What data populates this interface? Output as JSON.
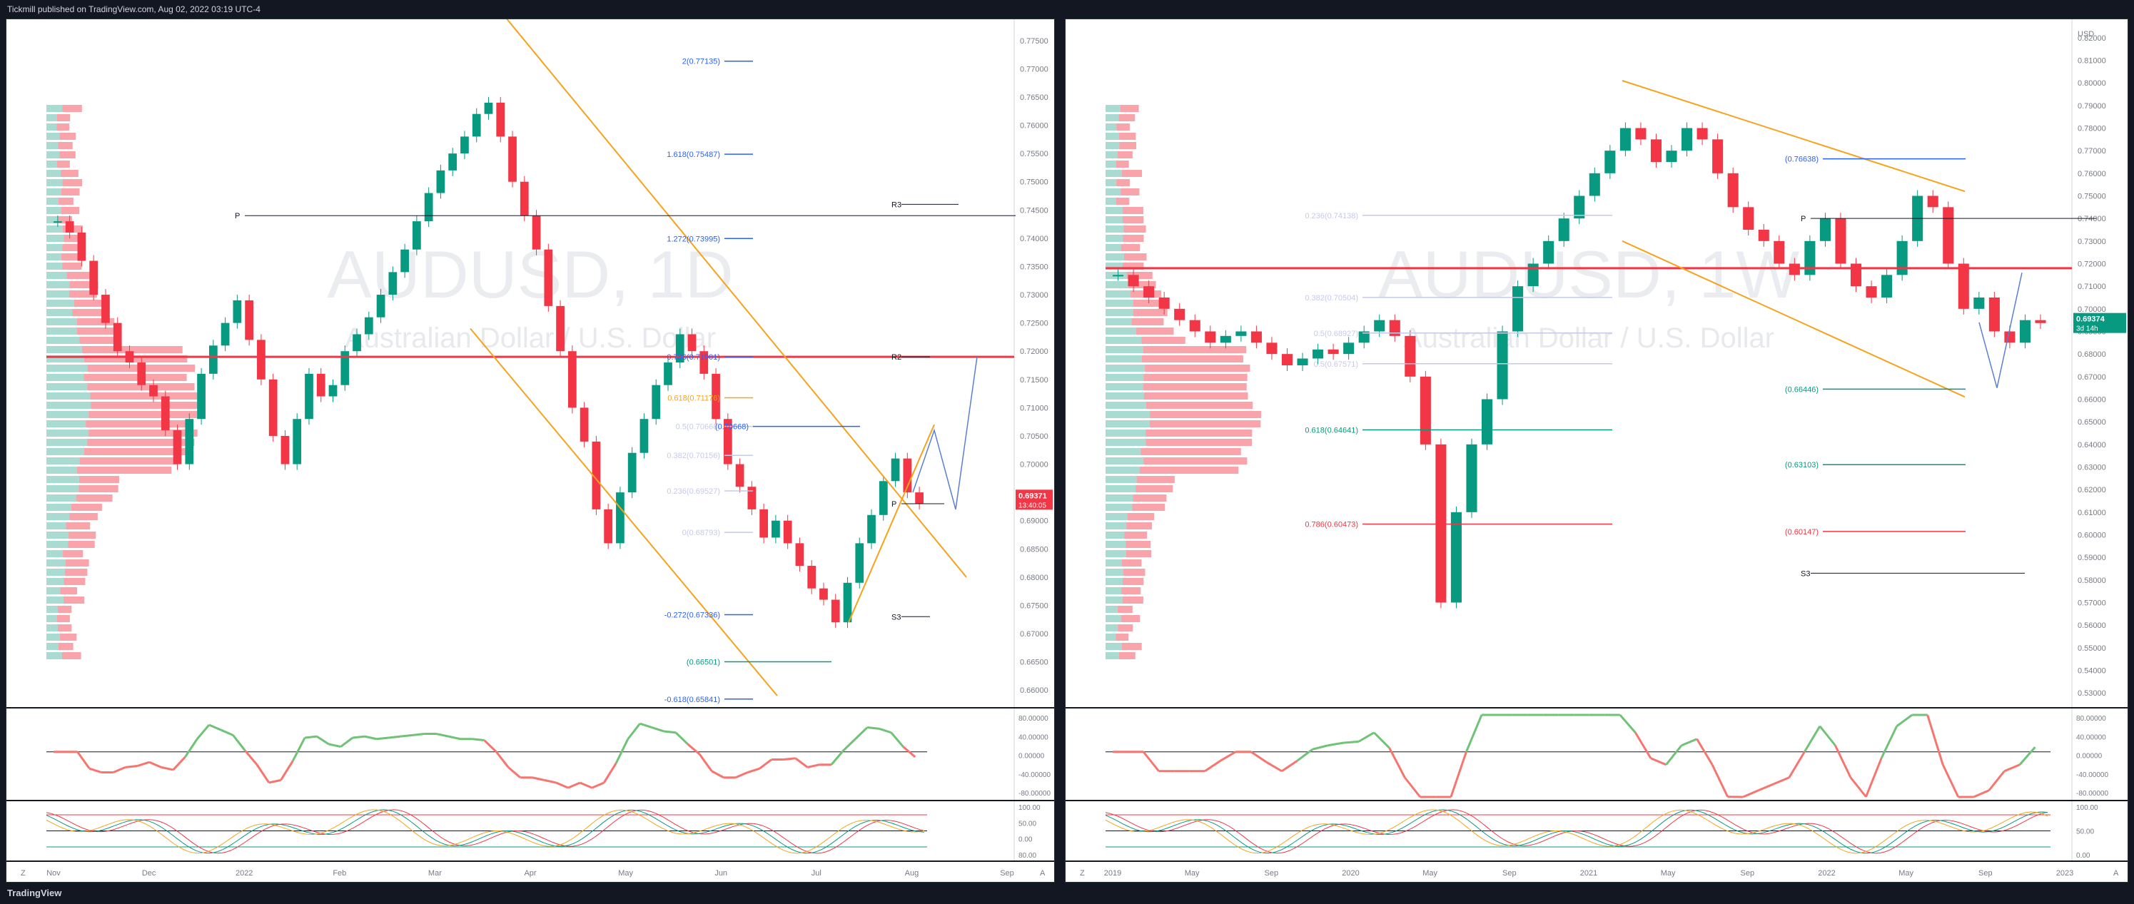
{
  "header": {
    "publish_line": "Tickmill published on TradingView.com, Aug 02, 2022 03:19 UTC-4"
  },
  "footer": {
    "brand": "TradingView"
  },
  "chart_data": [
    {
      "type": "line",
      "symbol_watermark": "AUDUSD, 1D",
      "subtitle_watermark": "Australian Dollar / U.S. Dollar",
      "currency": "",
      "current_price": "0.69371",
      "countdown": "13:40:05",
      "x_ticks": [
        "Nov",
        "Dec",
        "2022",
        "Feb",
        "Mar",
        "Apr",
        "May",
        "Jun",
        "Jul",
        "Aug",
        "Sep"
      ],
      "y_ticks": [
        0.775,
        0.77,
        0.765,
        0.76,
        0.755,
        0.75,
        0.745,
        0.74,
        0.735,
        0.73,
        0.725,
        0.72,
        0.715,
        0.71,
        0.705,
        0.7,
        0.695,
        0.69,
        0.685,
        0.68,
        0.675,
        0.67,
        0.665,
        0.66
      ],
      "ylim": [
        0.6575,
        0.7775
      ],
      "price": [
        0.743,
        0.741,
        0.736,
        0.73,
        0.725,
        0.72,
        0.718,
        0.714,
        0.712,
        0.706,
        0.7,
        0.708,
        0.716,
        0.721,
        0.725,
        0.729,
        0.722,
        0.715,
        0.705,
        0.7,
        0.708,
        0.716,
        0.712,
        0.714,
        0.72,
        0.723,
        0.726,
        0.73,
        0.734,
        0.738,
        0.743,
        0.748,
        0.752,
        0.755,
        0.758,
        0.762,
        0.764,
        0.758,
        0.75,
        0.744,
        0.738,
        0.728,
        0.72,
        0.71,
        0.704,
        0.692,
        0.686,
        0.695,
        0.702,
        0.708,
        0.714,
        0.718,
        0.723,
        0.72,
        0.716,
        0.708,
        0.7,
        0.696,
        0.692,
        0.687,
        0.69,
        0.686,
        0.682,
        0.678,
        0.676,
        0.672,
        0.679,
        0.686,
        0.691,
        0.697,
        0.701,
        0.695,
        0.693
      ],
      "fib_labels": [
        "2(0.77135)",
        "1.618(0.75487)",
        "1.272(0.73995)",
        "0.786(0.71901)",
        "0.618(0.71176)",
        "0.5(0.70668)",
        "0.382(0.70156)",
        "0.236(0.69527)",
        "0(0.68793)",
        "-0.272(0.67336)",
        "(0.66501)",
        "-0.618(0.65841)",
        "(0.70668)"
      ],
      "pivot_labels": [
        "P",
        "R3",
        "R2",
        "P",
        "S3"
      ],
      "indicator_ticks": [
        "80.00000",
        "40.00000",
        "0.00000",
        "-40.00000",
        "-80.00000"
      ],
      "stoch_ticks": [
        "100.00",
        "50.00",
        "0.00",
        "80.00"
      ],
      "bottom_buttons": [
        "Z",
        "A"
      ]
    },
    {
      "type": "line",
      "symbol_watermark": "AUDUSD, 1W",
      "subtitle_watermark": "Australian Dollar / U.S. Dollar",
      "currency": "USD",
      "current_price": "0.69374",
      "countdown": "3d 14h",
      "x_ticks": [
        "2019",
        "May",
        "Sep",
        "2020",
        "May",
        "Sep",
        "2021",
        "May",
        "Sep",
        "2022",
        "May",
        "Sep",
        "2023"
      ],
      "y_ticks": [
        0.82,
        0.81,
        0.8,
        0.79,
        0.78,
        0.77,
        0.76,
        0.75,
        0.74,
        0.73,
        0.72,
        0.71,
        0.7,
        0.69,
        0.68,
        0.67,
        0.66,
        0.65,
        0.64,
        0.63,
        0.62,
        0.61,
        0.6,
        0.59,
        0.58,
        0.57,
        0.56,
        0.55,
        0.54,
        0.53
      ],
      "ylim": [
        0.525,
        0.825
      ],
      "price": [
        0.715,
        0.71,
        0.705,
        0.7,
        0.695,
        0.69,
        0.685,
        0.688,
        0.69,
        0.685,
        0.68,
        0.675,
        0.678,
        0.682,
        0.68,
        0.685,
        0.69,
        0.695,
        0.688,
        0.67,
        0.64,
        0.57,
        0.61,
        0.64,
        0.66,
        0.69,
        0.71,
        0.72,
        0.73,
        0.74,
        0.75,
        0.76,
        0.77,
        0.78,
        0.775,
        0.765,
        0.77,
        0.78,
        0.775,
        0.76,
        0.745,
        0.735,
        0.73,
        0.72,
        0.715,
        0.73,
        0.74,
        0.72,
        0.71,
        0.705,
        0.715,
        0.73,
        0.75,
        0.745,
        0.72,
        0.7,
        0.705,
        0.69,
        0.685,
        0.695,
        0.6937
      ],
      "fib_labels": [
        "0.236(0.74138)",
        "0.382(0.70504)",
        "0.5(0.68927)",
        "0.5(0.67571)",
        "0.618(0.64641)",
        "0.786(0.60473)",
        "(0.76638)",
        "(0.66446)",
        "(0.63103)",
        "(0.60147)"
      ],
      "pivot_labels": [
        "P",
        "S3"
      ],
      "indicator_ticks": [
        "80.00000",
        "40.00000",
        "0.00000",
        "-40.00000",
        "-80.00000"
      ],
      "stoch_ticks": [
        "100.00",
        "50.00",
        "0.00"
      ],
      "bottom_buttons": [
        "Z",
        "A"
      ]
    }
  ],
  "colors": {
    "bull": "#089981",
    "bear": "#f23645",
    "fib_blue": "#2962ff",
    "channel": "#f7a21b",
    "pivot": "#131722",
    "price_tag_left": "#f23645",
    "price_tag_right": "#089981"
  }
}
